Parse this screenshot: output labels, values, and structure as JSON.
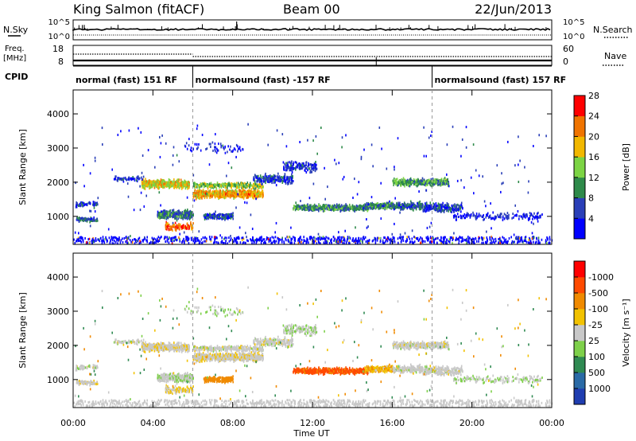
{
  "header": {
    "station": "King Salmon (fitACF)",
    "beam": "Beam 00",
    "date": "22/Jun/2013"
  },
  "chart_data": [
    {
      "type": "line",
      "name_label": "N.Sky",
      "right_label": "N.Search",
      "left_ticks": [
        "10^5",
        "10^0"
      ],
      "right_ticks": [
        "10^5",
        "10^0"
      ]
    },
    {
      "type": "line",
      "name_label": "Freq.",
      "unit_label": "[MHz]",
      "left_ticks": [
        "18",
        "8"
      ],
      "right_label": "Nave",
      "right_ticks": [
        "60",
        "0"
      ]
    },
    {
      "type": "table",
      "label": "CPID",
      "segments": [
        {
          "text": "normal (fast) 151 RF",
          "start": 0,
          "end": 6
        },
        {
          "text": "normalsound (fast) -157 RF",
          "start": 6,
          "end": 18
        },
        {
          "text": "normalsound (fast) 157 RF",
          "start": 18,
          "end": 24
        }
      ]
    },
    {
      "type": "heatmap",
      "ylabel": "Slant Range [km]",
      "yticks": [
        1000,
        2000,
        3000,
        4000
      ],
      "ylim": [
        180,
        4700
      ],
      "colorbar": {
        "title": "Power [dB]",
        "ticks": [
          "4",
          "8",
          "12",
          "16",
          "20",
          "24",
          "28"
        ],
        "colors": [
          "#0000ff",
          "#2a3fb8",
          "#2e8a4a",
          "#7cd444",
          "#f2b800",
          "#f07400",
          "#ff0000"
        ]
      }
    },
    {
      "type": "heatmap",
      "ylabel": "Slant Range [km]",
      "yticks": [
        1000,
        2000,
        3000,
        4000
      ],
      "ylim": [
        180,
        4700
      ],
      "xlabel": "Time UT",
      "xticks": [
        "00:00",
        "04:00",
        "08:00",
        "12:00",
        "16:00",
        "20:00",
        "00:00"
      ],
      "colorbar": {
        "title": "Velocity [m s⁻¹]",
        "ticks": [
          "1000",
          "500",
          "100",
          "25",
          "-25",
          "-100",
          "-500",
          "-1000"
        ],
        "colors": [
          "#1f3db0",
          "#2a6aa6",
          "#2f8a52",
          "#7ed04a",
          "#c8c8c8",
          "#f2c200",
          "#f08a00",
          "#ff4a00",
          "#ff0000"
        ]
      }
    }
  ]
}
